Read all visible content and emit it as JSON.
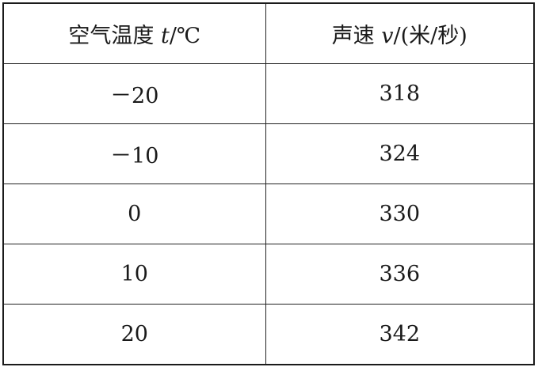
{
  "table": {
    "headers": [
      {
        "prefix": "空气温度 ",
        "var": "t",
        "suffix": "/℃"
      },
      {
        "prefix": "声速 ",
        "var": "v",
        "suffix": "/(米/秒)"
      }
    ],
    "rows": [
      [
        "－20",
        "318"
      ],
      [
        "－10",
        "324"
      ],
      [
        "0",
        "330"
      ],
      [
        "10",
        "336"
      ],
      [
        "20",
        "342"
      ]
    ]
  }
}
